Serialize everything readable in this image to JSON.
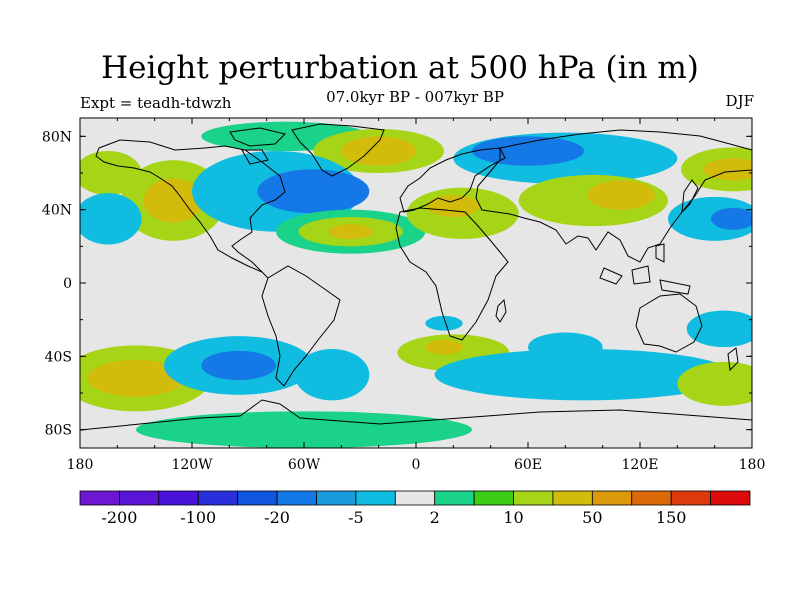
{
  "figure": {
    "title": "Height perturbation at 500 hPa (in m)",
    "subtitle": "07.0kyr BP - 007kyr BP",
    "experiment": "Expt = teadh-tdwzh",
    "season": "DJF"
  },
  "map": {
    "projection": "cylindrical equidistant",
    "lon_range": [
      -180,
      180
    ],
    "lat_range": [
      -90,
      90
    ],
    "x_ticks": [
      {
        "lon": -180,
        "label": "180"
      },
      {
        "lon": -120,
        "label": "120W"
      },
      {
        "lon": -60,
        "label": "60W"
      },
      {
        "lon": 0,
        "label": "0"
      },
      {
        "lon": 60,
        "label": "60E"
      },
      {
        "lon": 120,
        "label": "120E"
      },
      {
        "lon": 180,
        "label": "180"
      }
    ],
    "y_ticks": [
      {
        "lat": 80,
        "label": "80N"
      },
      {
        "lat": 40,
        "label": "40N"
      },
      {
        "lat": 0,
        "label": "0"
      },
      {
        "lat": -40,
        "label": "40S"
      },
      {
        "lat": -80,
        "label": "80S"
      }
    ],
    "background_color": "#e6e6e6",
    "coastline_color": "#000000"
  },
  "colorbar": {
    "colors": [
      "#6e17d2",
      "#5a14d6",
      "#4a14d8",
      "#2a2fdc",
      "#1055e0",
      "#1479e6",
      "#1a9bde",
      "#10bde0",
      "#e6e6e6",
      "#1ad28a",
      "#3ccd16",
      "#a6d416",
      "#d2bb0a",
      "#dc9a0a",
      "#dc6a0a",
      "#dc3a0a",
      "#dc0a0a"
    ],
    "labels": [
      {
        "after_box": 1,
        "text": "-200"
      },
      {
        "after_box": 3,
        "text": "-100"
      },
      {
        "after_box": 5,
        "text": "-20"
      },
      {
        "after_box": 7,
        "text": "-5"
      },
      {
        "after_box": 9,
        "text": "2"
      },
      {
        "after_box": 11,
        "text": "10"
      },
      {
        "after_box": 13,
        "text": "50"
      },
      {
        "after_box": 15,
        "text": "150"
      }
    ]
  },
  "chart_data": {
    "type": "heatmap",
    "variable": "500 hPa geopotential height perturbation",
    "units": "m",
    "color_levels": [
      -200,
      -100,
      -20,
      -5,
      2,
      10,
      50,
      150
    ],
    "anomaly_regions": [
      {
        "lon": -165,
        "lat": 60,
        "rx": 18,
        "ry": 12,
        "level": 10
      },
      {
        "lon": -130,
        "lat": 45,
        "rx": 28,
        "ry": 22,
        "level": 10
      },
      {
        "lon": -130,
        "lat": 45,
        "rx": 16,
        "ry": 12,
        "level": 50
      },
      {
        "lon": -70,
        "lat": 80,
        "rx": 45,
        "ry": 8,
        "level": 2
      },
      {
        "lon": -20,
        "lat": 72,
        "rx": 35,
        "ry": 12,
        "level": 10
      },
      {
        "lon": -20,
        "lat": 72,
        "rx": 20,
        "ry": 8,
        "level": 50
      },
      {
        "lon": -165,
        "lat": 35,
        "rx": 18,
        "ry": 14,
        "level": -5
      },
      {
        "lon": -75,
        "lat": 50,
        "rx": 45,
        "ry": 22,
        "level": -5
      },
      {
        "lon": -55,
        "lat": 50,
        "rx": 30,
        "ry": 12,
        "level": -20
      },
      {
        "lon": -35,
        "lat": 28,
        "rx": 40,
        "ry": 12,
        "level": 2
      },
      {
        "lon": -35,
        "lat": 28,
        "rx": 28,
        "ry": 8,
        "level": 10
      },
      {
        "lon": -35,
        "lat": 28,
        "rx": 12,
        "ry": 4,
        "level": 50
      },
      {
        "lon": 25,
        "lat": 38,
        "rx": 30,
        "ry": 14,
        "level": 10
      },
      {
        "lon": 20,
        "lat": 42,
        "rx": 14,
        "ry": 6,
        "level": 50
      },
      {
        "lon": 80,
        "lat": 68,
        "rx": 60,
        "ry": 14,
        "level": -5
      },
      {
        "lon": 60,
        "lat": 72,
        "rx": 30,
        "ry": 8,
        "level": -20
      },
      {
        "lon": 95,
        "lat": 45,
        "rx": 40,
        "ry": 14,
        "level": 10
      },
      {
        "lon": 110,
        "lat": 48,
        "rx": 18,
        "ry": 8,
        "level": 50
      },
      {
        "lon": 170,
        "lat": 62,
        "rx": 28,
        "ry": 12,
        "level": 10
      },
      {
        "lon": 170,
        "lat": 62,
        "rx": 16,
        "ry": 6,
        "level": 50
      },
      {
        "lon": 160,
        "lat": 35,
        "rx": 25,
        "ry": 12,
        "level": -5
      },
      {
        "lon": 170,
        "lat": 35,
        "rx": 12,
        "ry": 6,
        "level": -20
      },
      {
        "lon": 15,
        "lat": -22,
        "rx": 10,
        "ry": 4,
        "level": -5
      },
      {
        "lon": -150,
        "lat": -52,
        "rx": 40,
        "ry": 18,
        "level": 10
      },
      {
        "lon": -150,
        "lat": -52,
        "rx": 26,
        "ry": 10,
        "level": 50
      },
      {
        "lon": -95,
        "lat": -45,
        "rx": 40,
        "ry": 16,
        "level": -5
      },
      {
        "lon": -95,
        "lat": -45,
        "rx": 20,
        "ry": 8,
        "level": -20
      },
      {
        "lon": -45,
        "lat": -50,
        "rx": 20,
        "ry": 14,
        "level": -5
      },
      {
        "lon": 20,
        "lat": -38,
        "rx": 30,
        "ry": 10,
        "level": 10
      },
      {
        "lon": 15,
        "lat": -35,
        "rx": 10,
        "ry": 4,
        "level": 50
      },
      {
        "lon": 90,
        "lat": -50,
        "rx": 80,
        "ry": 14,
        "level": -5
      },
      {
        "lon": 80,
        "lat": -35,
        "rx": 20,
        "ry": 8,
        "level": -5
      },
      {
        "lon": 165,
        "lat": -25,
        "rx": 20,
        "ry": 10,
        "level": -5
      },
      {
        "lon": 165,
        "lat": -55,
        "rx": 25,
        "ry": 12,
        "level": 10
      },
      {
        "lon": -60,
        "lat": -80,
        "rx": 90,
        "ry": 10,
        "level": 2
      }
    ]
  }
}
